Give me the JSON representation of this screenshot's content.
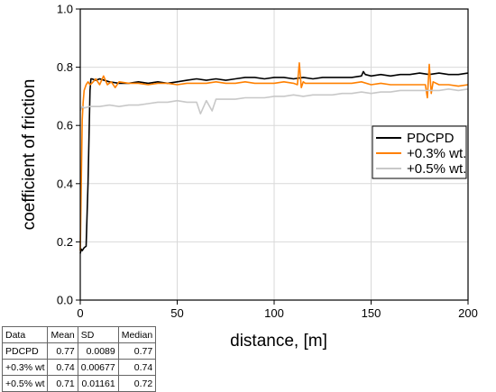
{
  "chart_data": {
    "type": "line",
    "xlabel": "distance, [m]",
    "ylabel": "coefficient of friction",
    "xlim": [
      0,
      200
    ],
    "ylim": [
      0.0,
      1.0
    ],
    "x_ticks": [
      0,
      50,
      100,
      150,
      200
    ],
    "x_tick_labels": [
      "0",
      "50",
      "100",
      "150",
      "200"
    ],
    "y_ticks": [
      0.0,
      0.2,
      0.4,
      0.6,
      0.8,
      1.0
    ],
    "y_tick_labels": [
      "0.0",
      "0.2",
      "0.4",
      "0.6",
      "0.8",
      "1.0"
    ],
    "grid": true,
    "legend_position": "right",
    "series": [
      {
        "name": "PDCPD",
        "color": "#000000",
        "x": [
          0,
          0.5,
          1,
          2,
          3,
          4,
          5,
          5.5,
          6,
          8,
          10,
          15,
          20,
          25,
          30,
          35,
          40,
          45,
          50,
          55,
          60,
          65,
          70,
          75,
          80,
          85,
          90,
          95,
          100,
          105,
          110,
          115,
          120,
          125,
          130,
          135,
          140,
          145,
          146,
          147,
          150,
          155,
          160,
          165,
          170,
          175,
          180,
          185,
          190,
          195,
          200
        ],
        "y": [
          0.16,
          0.175,
          0.17,
          0.18,
          0.185,
          0.4,
          0.72,
          0.76,
          0.76,
          0.755,
          0.76,
          0.75,
          0.745,
          0.745,
          0.75,
          0.745,
          0.75,
          0.745,
          0.75,
          0.755,
          0.76,
          0.755,
          0.76,
          0.755,
          0.76,
          0.765,
          0.765,
          0.76,
          0.765,
          0.765,
          0.76,
          0.765,
          0.76,
          0.765,
          0.765,
          0.765,
          0.765,
          0.77,
          0.785,
          0.775,
          0.77,
          0.775,
          0.77,
          0.775,
          0.775,
          0.78,
          0.775,
          0.78,
          0.775,
          0.775,
          0.78
        ]
      },
      {
        "name": "+0.3% wt.",
        "color": "#ff8000",
        "x": [
          0,
          0.5,
          1,
          1.5,
          2,
          3,
          4,
          5,
          6,
          8,
          10,
          12,
          14,
          16,
          18,
          20,
          25,
          30,
          35,
          40,
          45,
          50,
          55,
          60,
          65,
          70,
          75,
          80,
          85,
          90,
          95,
          100,
          105,
          110,
          112,
          113,
          114,
          115,
          116,
          118,
          120,
          125,
          130,
          135,
          140,
          145,
          150,
          155,
          160,
          165,
          170,
          175,
          178,
          179,
          180,
          181,
          182,
          185,
          190,
          195,
          200
        ],
        "y": [
          0.17,
          0.4,
          0.62,
          0.68,
          0.72,
          0.74,
          0.75,
          0.74,
          0.745,
          0.76,
          0.74,
          0.77,
          0.74,
          0.75,
          0.73,
          0.75,
          0.745,
          0.745,
          0.74,
          0.745,
          0.745,
          0.74,
          0.745,
          0.745,
          0.745,
          0.75,
          0.745,
          0.745,
          0.75,
          0.745,
          0.745,
          0.745,
          0.75,
          0.745,
          0.74,
          0.815,
          0.73,
          0.75,
          0.745,
          0.745,
          0.745,
          0.745,
          0.745,
          0.745,
          0.745,
          0.75,
          0.74,
          0.745,
          0.74,
          0.74,
          0.74,
          0.74,
          0.74,
          0.695,
          0.81,
          0.71,
          0.75,
          0.74,
          0.74,
          0.735,
          0.74
        ]
      },
      {
        "name": "+0.5% wt.",
        "color": "#c8c8c8",
        "x": [
          0,
          1,
          2,
          5,
          10,
          15,
          20,
          25,
          30,
          35,
          40,
          45,
          50,
          55,
          60,
          62,
          65,
          68,
          70,
          75,
          80,
          85,
          90,
          95,
          100,
          105,
          110,
          115,
          120,
          125,
          130,
          135,
          140,
          145,
          150,
          155,
          160,
          165,
          170,
          175,
          180,
          185,
          190,
          195,
          200
        ],
        "y": [
          0.65,
          0.665,
          0.66,
          0.665,
          0.665,
          0.67,
          0.665,
          0.67,
          0.67,
          0.675,
          0.68,
          0.68,
          0.685,
          0.68,
          0.68,
          0.64,
          0.685,
          0.65,
          0.69,
          0.69,
          0.69,
          0.695,
          0.695,
          0.695,
          0.7,
          0.7,
          0.705,
          0.7,
          0.705,
          0.705,
          0.705,
          0.71,
          0.71,
          0.715,
          0.71,
          0.715,
          0.715,
          0.72,
          0.72,
          0.72,
          0.72,
          0.72,
          0.725,
          0.72,
          0.725
        ]
      }
    ]
  },
  "stats_table": {
    "headers": [
      "Data",
      "Mean",
      "SD",
      "Median"
    ],
    "rows": [
      [
        "PDCPD",
        "0.77",
        "0.0089",
        "0.77"
      ],
      [
        "+0.3% wt",
        "0.74",
        "0.00677",
        "0.74"
      ],
      [
        "+0.5% wt",
        "0.71",
        "0.01161",
        "0.72"
      ]
    ]
  }
}
